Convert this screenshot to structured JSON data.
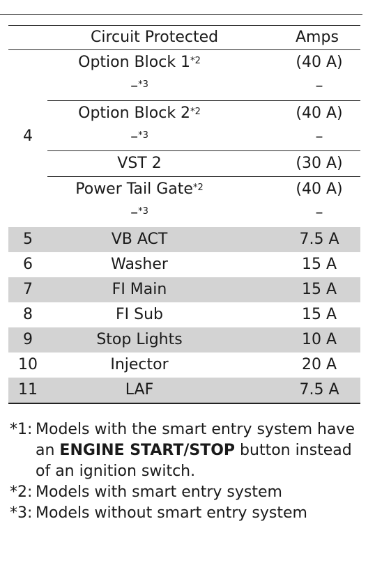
{
  "table": {
    "headers": {
      "circuit": "Circuit Protected",
      "amps": "Amps"
    },
    "group4": {
      "number": "4",
      "items": [
        {
          "circuit": "Option Block 1",
          "circuit_sup": "*2",
          "amps": "(40 A)",
          "alt": "–",
          "alt_sup": "*3",
          "alt_amps": "–"
        },
        {
          "circuit": "Option Block 2",
          "circuit_sup": "*2",
          "amps": "(40 A)",
          "alt": "–",
          "alt_sup": "*3",
          "alt_amps": "–"
        },
        {
          "circuit": "VST 2",
          "amps": "(30 A)"
        },
        {
          "circuit": "Power Tail Gate",
          "circuit_sup": "*2",
          "amps": "(40 A)",
          "alt": "–",
          "alt_sup": "*3",
          "alt_amps": "–"
        }
      ]
    },
    "rows": [
      {
        "num": "5",
        "circuit": "VB ACT",
        "amps": "7.5 A"
      },
      {
        "num": "6",
        "circuit": "Washer",
        "amps": "15 A"
      },
      {
        "num": "7",
        "circuit": "FI Main",
        "amps": "15 A"
      },
      {
        "num": "8",
        "circuit": "FI Sub",
        "amps": "15 A"
      },
      {
        "num": "9",
        "circuit": "Stop Lights",
        "amps": "10 A"
      },
      {
        "num": "10",
        "circuit": "Injector",
        "amps": "20 A"
      },
      {
        "num": "11",
        "circuit": "LAF",
        "amps": "7.5 A"
      }
    ]
  },
  "notes": [
    {
      "key": "*1:",
      "pre": "Models with the smart entry system have an ",
      "bold": "ENGINE START/STOP",
      "post": " button instead of an ignition switch."
    },
    {
      "key": "*2:",
      "text": "Models with smart entry system"
    },
    {
      "key": "*3:",
      "text": "Models without smart entry system"
    }
  ]
}
